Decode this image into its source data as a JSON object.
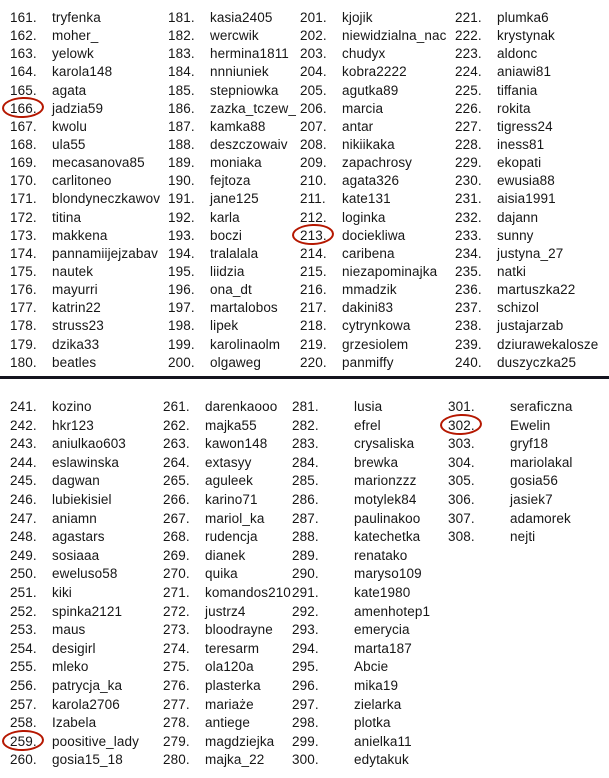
{
  "style": {
    "circle_color": "#b51700",
    "divider_color": "#14141e",
    "text_color": "#161616",
    "background_color": "#ffffff"
  },
  "circled_numbers": [
    166,
    213,
    259,
    302
  ],
  "list": {
    "sections": [
      {
        "name": "top",
        "columns": [
          {
            "items": [
              {
                "num": 161,
                "name": "tryfenka"
              },
              {
                "num": 162,
                "name": "moher_"
              },
              {
                "num": 163,
                "name": "yelowk"
              },
              {
                "num": 164,
                "name": "karola148"
              },
              {
                "num": 165,
                "name": "agata"
              },
              {
                "num": 166,
                "name": "jadzia59"
              },
              {
                "num": 167,
                "name": "kwolu"
              },
              {
                "num": 168,
                "name": "ula55"
              },
              {
                "num": 169,
                "name": "mecasanova85"
              },
              {
                "num": 170,
                "name": "carlitoneo"
              },
              {
                "num": 171,
                "name": "blondyneczkawov"
              },
              {
                "num": 172,
                "name": "titina"
              },
              {
                "num": 173,
                "name": "makkena"
              },
              {
                "num": 174,
                "name": "pannamiijejzabav"
              },
              {
                "num": 175,
                "name": "nautek"
              },
              {
                "num": 176,
                "name": "mayurri"
              },
              {
                "num": 177,
                "name": "katrin22"
              },
              {
                "num": 178,
                "name": "struss23"
              },
              {
                "num": 179,
                "name": "dzika33"
              },
              {
                "num": 180,
                "name": "beatles"
              }
            ]
          },
          {
            "items": [
              {
                "num": 181,
                "name": "kasia2405"
              },
              {
                "num": 182,
                "name": "wercwik"
              },
              {
                "num": 183,
                "name": "hermina1811"
              },
              {
                "num": 184,
                "name": "nnniuniek"
              },
              {
                "num": 185,
                "name": "stepniowka"
              },
              {
                "num": 186,
                "name": "zazka_tczew_"
              },
              {
                "num": 187,
                "name": "kamka88"
              },
              {
                "num": 188,
                "name": "deszczowaiv"
              },
              {
                "num": 189,
                "name": "moniaka"
              },
              {
                "num": 190,
                "name": "fejtoza"
              },
              {
                "num": 191,
                "name": "jane125"
              },
              {
                "num": 192,
                "name": "karla"
              },
              {
                "num": 193,
                "name": "boczi"
              },
              {
                "num": 194,
                "name": "tralalala"
              },
              {
                "num": 195,
                "name": "liidzia"
              },
              {
                "num": 196,
                "name": "ona_dt"
              },
              {
                "num": 197,
                "name": "martalobos"
              },
              {
                "num": 198,
                "name": "lipek"
              },
              {
                "num": 199,
                "name": "karolinaolm"
              },
              {
                "num": 200,
                "name": "olgaweg"
              }
            ]
          },
          {
            "items": [
              {
                "num": 201,
                "name": "kjojik"
              },
              {
                "num": 202,
                "name": "niewidzialna_nac"
              },
              {
                "num": 203,
                "name": "chudyx"
              },
              {
                "num": 204,
                "name": "kobra2222"
              },
              {
                "num": 205,
                "name": "agutka89"
              },
              {
                "num": 206,
                "name": "marcia"
              },
              {
                "num": 207,
                "name": "antar"
              },
              {
                "num": 208,
                "name": "nikiikaka"
              },
              {
                "num": 209,
                "name": "zapachrosy"
              },
              {
                "num": 210,
                "name": "agata326"
              },
              {
                "num": 211,
                "name": "kate131"
              },
              {
                "num": 212,
                "name": "loginka"
              },
              {
                "num": 213,
                "name": "dociekliwa"
              },
              {
                "num": 214,
                "name": "caribena"
              },
              {
                "num": 215,
                "name": "niezapominajka"
              },
              {
                "num": 216,
                "name": "mmadzik"
              },
              {
                "num": 217,
                "name": "dakini83"
              },
              {
                "num": 218,
                "name": "cytrynkowa"
              },
              {
                "num": 219,
                "name": "grzesiolem"
              },
              {
                "num": 220,
                "name": "panmiffy"
              }
            ]
          },
          {
            "items": [
              {
                "num": 221,
                "name": "plumka6"
              },
              {
                "num": 222,
                "name": "krystynak"
              },
              {
                "num": 223,
                "name": "aldonc"
              },
              {
                "num": 224,
                "name": "aniawi81"
              },
              {
                "num": 225,
                "name": "tiffania"
              },
              {
                "num": 226,
                "name": "rokita"
              },
              {
                "num": 227,
                "name": "tigress24"
              },
              {
                "num": 228,
                "name": "iness81"
              },
              {
                "num": 229,
                "name": "ekopati"
              },
              {
                "num": 230,
                "name": "ewusia88"
              },
              {
                "num": 231,
                "name": "aisia1991"
              },
              {
                "num": 232,
                "name": "dajann"
              },
              {
                "num": 233,
                "name": "sunny"
              },
              {
                "num": 234,
                "name": "justyna_27"
              },
              {
                "num": 235,
                "name": "natki"
              },
              {
                "num": 236,
                "name": "martuszka22"
              },
              {
                "num": 237,
                "name": "schizol"
              },
              {
                "num": 238,
                "name": "justajarzab"
              },
              {
                "num": 239,
                "name": "dziurawekalosze"
              },
              {
                "num": 240,
                "name": "duszyczka25"
              }
            ]
          }
        ]
      },
      {
        "name": "bottom",
        "columns": [
          {
            "items": [
              {
                "num": 241,
                "name": "kozino"
              },
              {
                "num": 242,
                "name": "hkr123"
              },
              {
                "num": 243,
                "name": "aniulkao603"
              },
              {
                "num": 244,
                "name": "eslawinska"
              },
              {
                "num": 245,
                "name": "dagwan"
              },
              {
                "num": 246,
                "name": "lubiekisiel"
              },
              {
                "num": 247,
                "name": "aniamn"
              },
              {
                "num": 248,
                "name": "agastars"
              },
              {
                "num": 249,
                "name": "sosiaaa"
              },
              {
                "num": 250,
                "name": "eweluso58"
              },
              {
                "num": 251,
                "name": "kiki"
              },
              {
                "num": 252,
                "name": "spinka2121"
              },
              {
                "num": 253,
                "name": "maus"
              },
              {
                "num": 254,
                "name": "desigirl"
              },
              {
                "num": 255,
                "name": "mleko"
              },
              {
                "num": 256,
                "name": "patrycja_ka"
              },
              {
                "num": 257,
                "name": "karola2706"
              },
              {
                "num": 258,
                "name": "Izabela"
              },
              {
                "num": 259,
                "name": "poositive_lady"
              },
              {
                "num": 260,
                "name": "gosia15_18"
              }
            ]
          },
          {
            "items": [
              {
                "num": 261,
                "name": "darenkaooo"
              },
              {
                "num": 262,
                "name": "majka55"
              },
              {
                "num": 263,
                "name": "kawon148"
              },
              {
                "num": 264,
                "name": "extasyy"
              },
              {
                "num": 265,
                "name": "aguleek"
              },
              {
                "num": 266,
                "name": "karino71"
              },
              {
                "num": 267,
                "name": "mariol_ka"
              },
              {
                "num": 268,
                "name": "rudencja"
              },
              {
                "num": 269,
                "name": "dianek"
              },
              {
                "num": 270,
                "name": "quika"
              },
              {
                "num": 271,
                "name": "komandos210"
              },
              {
                "num": 272,
                "name": "justrz4"
              },
              {
                "num": 273,
                "name": "bloodrayne"
              },
              {
                "num": 274,
                "name": "teresarm"
              },
              {
                "num": 275,
                "name": "ola120a"
              },
              {
                "num": 276,
                "name": "plasterka"
              },
              {
                "num": 277,
                "name": "mariaże"
              },
              {
                "num": 278,
                "name": "antiege"
              },
              {
                "num": 279,
                "name": "magdziejka"
              },
              {
                "num": 280,
                "name": "majka_22"
              }
            ]
          },
          {
            "items": [
              {
                "num": 281,
                "name": "lusia"
              },
              {
                "num": 282,
                "name": "efrel"
              },
              {
                "num": 283,
                "name": "crysaliska"
              },
              {
                "num": 284,
                "name": "brewka"
              },
              {
                "num": 285,
                "name": "marionzzz"
              },
              {
                "num": 286,
                "name": "motylek84"
              },
              {
                "num": 287,
                "name": "paulinakoo"
              },
              {
                "num": 288,
                "name": "katechetka"
              },
              {
                "num": 289,
                "name": "renatako"
              },
              {
                "num": 290,
                "name": "maryso109"
              },
              {
                "num": 291,
                "name": "kate1980"
              },
              {
                "num": 292,
                "name": "amenhotep1"
              },
              {
                "num": 293,
                "name": "emerycia"
              },
              {
                "num": 294,
                "name": "marta187"
              },
              {
                "num": 295,
                "name": "Abcie"
              },
              {
                "num": 296,
                "name": "mika19"
              },
              {
                "num": 297,
                "name": "zielarka"
              },
              {
                "num": 298,
                "name": "plotka"
              },
              {
                "num": 299,
                "name": "anielka11"
              },
              {
                "num": 300,
                "name": "edytakuk"
              }
            ]
          },
          {
            "items": [
              {
                "num": 301,
                "name": "seraficzna"
              },
              {
                "num": 302,
                "name": "Ewelin"
              },
              {
                "num": 303,
                "name": "gryf18"
              },
              {
                "num": 304,
                "name": "mariolakal"
              },
              {
                "num": 305,
                "name": "gosia56"
              },
              {
                "num": 306,
                "name": "jasiek7"
              },
              {
                "num": 307,
                "name": "adamorek"
              },
              {
                "num": 308,
                "name": "nejti"
              }
            ]
          }
        ]
      }
    ]
  }
}
